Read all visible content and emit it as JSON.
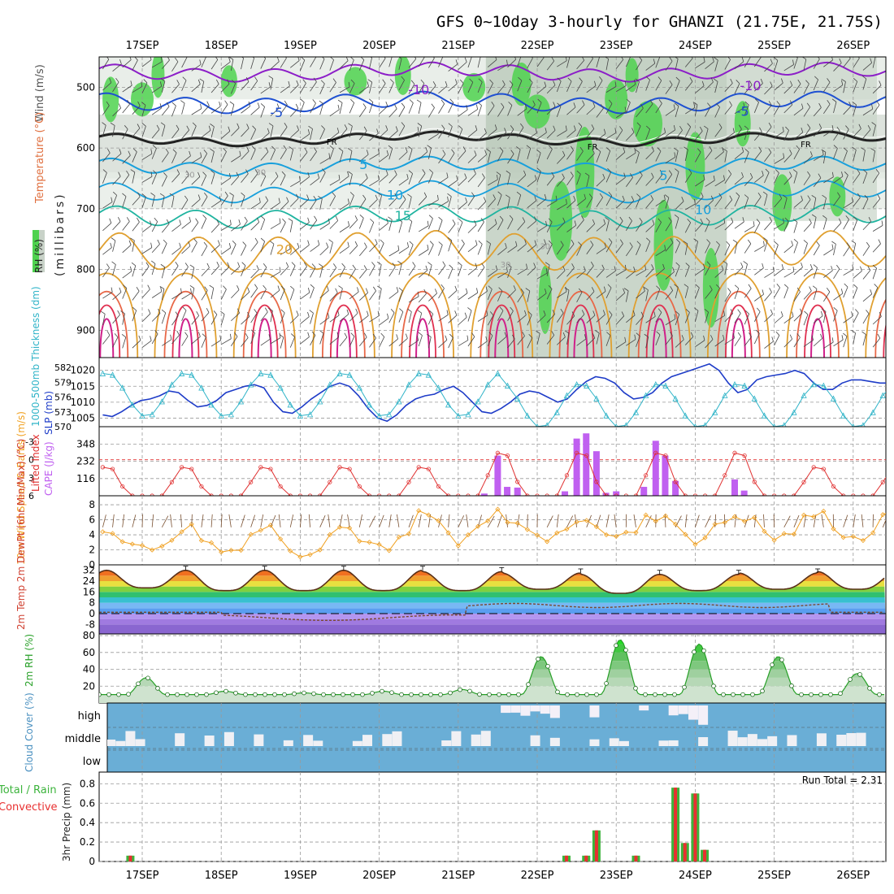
{
  "title": "GFS 0~10day 3-hourly for GHANZI (21.75E, 21.75S)",
  "colors": {
    "rh_green": "#4fd24f",
    "rh_grey": "#c8d2c8",
    "temp_purple": "#8c1ec8",
    "temp_blue": "#1e50d2",
    "freezing": "#222222",
    "temp_cyan": "#18a0dc",
    "temp_teal": "#20b4a0",
    "temp_orange": "#e0a030",
    "temp_red": "#e03050",
    "slp_blue": "#1e3cc8",
    "thickness_cyan": "#30b4c8",
    "cape_violet": "#c060f0",
    "lifted_red": "#e03030",
    "wind_orange": "#f0a020",
    "rh2m_green": "#28a028",
    "cloud_blue": "#6aaed6",
    "precip_green": "#3cb43c",
    "precip_red": "#e83030"
  },
  "icons": [
    "wind-barb-icon",
    "temperature-ramp-icon"
  ],
  "chart_data": [
    {
      "type": "heatmap",
      "name": "Upper-air cross section",
      "x_dates": [
        "17SEP",
        "18SEP",
        "19SEP",
        "20SEP",
        "21SEP",
        "22SEP",
        "23SEP",
        "24SEP",
        "25SEP",
        "26SEP"
      ],
      "ylabel": "(millibars)",
      "legend_labels": [
        "Wind (m/s)",
        "Temperature (°C)",
        "RH (%)"
      ],
      "y_ticks": [
        500,
        600,
        700,
        800,
        900
      ],
      "ylim": [
        945,
        450
      ],
      "contour_labels": [
        {
          "text": "-10",
          "day": 3.5,
          "p": 505
        },
        {
          "text": "-10",
          "day": 7.7,
          "p": 498
        },
        {
          "text": "-5",
          "day": 1.7,
          "p": 542
        },
        {
          "text": "-5",
          "day": 7.6,
          "p": 540
        },
        {
          "text": "FR",
          "day": 2.4,
          "p": 588
        },
        {
          "text": "FR",
          "day": 5.7,
          "p": 596
        },
        {
          "text": "FR",
          "day": 8.4,
          "p": 592
        },
        {
          "text": "5",
          "day": 2.8,
          "p": 628
        },
        {
          "text": "5",
          "day": 6.6,
          "p": 646
        },
        {
          "text": "10",
          "day": 3.2,
          "p": 678
        },
        {
          "text": "10",
          "day": 7.1,
          "p": 702
        },
        {
          "text": "15",
          "day": 3.3,
          "p": 712
        },
        {
          "text": "20",
          "day": 1.8,
          "p": 768
        },
        {
          "text": "30",
          "day": 0.6,
          "p": 642
        },
        {
          "text": "30",
          "day": 1.5,
          "p": 638
        },
        {
          "text": "30",
          "day": 4.6,
          "p": 790
        },
        {
          "text": "30",
          "day": 5.1,
          "p": 760
        }
      ]
    },
    {
      "type": "line",
      "name": "Thickness / SLP",
      "left_label": "1000-500mb Thickness (dm)",
      "right_label": "SLP (mb)",
      "left_ticks": [
        570,
        573,
        576,
        579,
        582
      ],
      "right_ticks": [
        1005,
        1010,
        1015,
        1020
      ],
      "right_ylim": [
        1002.3,
        1024.0
      ],
      "left_ylim": [
        570,
        584
      ],
      "slp": [
        1006,
        1005.5,
        1007,
        1009,
        1010.5,
        1011,
        1012,
        1013.5,
        1013,
        1010.5,
        1008.5,
        1009,
        1010.5,
        1013,
        1014,
        1015,
        1015.5,
        1014.5,
        1010,
        1007,
        1006.5,
        1008.5,
        1011,
        1013,
        1015,
        1016,
        1015,
        1012,
        1008,
        1005,
        1004,
        1006,
        1009,
        1011,
        1012,
        1012.5,
        1014,
        1015,
        1013,
        1010,
        1007,
        1006.5,
        1008,
        1010,
        1012.5,
        1013.5,
        1013,
        1011.5,
        1010,
        1011,
        1014,
        1016.5,
        1018,
        1017.5,
        1016,
        1013,
        1011,
        1011.5,
        1013,
        1016,
        1018,
        1019,
        1020,
        1021,
        1022,
        1020,
        1016,
        1013,
        1014,
        1017,
        1018,
        1018.5,
        1019,
        1020,
        1019,
        1016,
        1014,
        1014,
        1016,
        1017,
        1017,
        1016.5,
        1016,
        1016,
        1014
      ]
    },
    {
      "type": "bar",
      "name": "CAPE / Lifted Index",
      "left_label": "Lifted Index",
      "right_label": "CAPE (J/kg)",
      "li_ticks": [
        -3,
        0,
        3,
        6
      ],
      "cape_ticks": [
        116,
        232,
        348
      ],
      "cape_ylim": [
        0,
        465
      ],
      "li_ylim": [
        6,
        -5.5
      ],
      "cape_bars": [
        {
          "day": 4.33,
          "value": 15
        },
        {
          "day": 4.5,
          "value": 270
        },
        {
          "day": 4.62,
          "value": 60
        },
        {
          "day": 4.75,
          "value": 55
        },
        {
          "day": 5.35,
          "value": 30
        },
        {
          "day": 5.5,
          "value": 385
        },
        {
          "day": 5.62,
          "value": 420
        },
        {
          "day": 5.75,
          "value": 300
        },
        {
          "day": 5.87,
          "value": 20
        },
        {
          "day": 6.0,
          "value": 30
        },
        {
          "day": 6.35,
          "value": 60
        },
        {
          "day": 6.5,
          "value": 370
        },
        {
          "day": 6.62,
          "value": 270
        },
        {
          "day": 6.75,
          "value": 100
        },
        {
          "day": 7.5,
          "value": 110
        },
        {
          "day": 7.62,
          "value": 35
        }
      ]
    },
    {
      "type": "line",
      "name": "10m Wind",
      "ylabel": "10m Wind Speed & Barbs (m/s)",
      "y_ticks": [
        0,
        2,
        4,
        6,
        8
      ],
      "ylim": [
        0,
        9.2
      ]
    },
    {
      "type": "area",
      "name": "2m Temp / DewPt",
      "ylabel": "2m Temp 2m DewPt (6hr Min/Max) (°C)",
      "y_ticks": [
        -8,
        0,
        8,
        16,
        24,
        32
      ],
      "ylim": [
        -15,
        36
      ],
      "temp_max_by_day": [
        32,
        32,
        32,
        32,
        31,
        30,
        29,
        29,
        30,
        31
      ],
      "temp_min_by_day": [
        19,
        17,
        17,
        17,
        17,
        18,
        15,
        17,
        18,
        18
      ]
    },
    {
      "type": "area",
      "name": "2m RH",
      "ylabel": "2m RH (%)",
      "y_ticks": [
        20,
        40,
        60,
        80
      ],
      "ylim": [
        0,
        82
      ]
    },
    {
      "type": "bar",
      "name": "Cloud Cover",
      "ylabel": "Cloud Cover (%)",
      "levels": [
        "high",
        "middle",
        "low"
      ]
    },
    {
      "type": "bar",
      "name": "3hr Precip",
      "ylabel": "3hr Precip (mm)",
      "legend_labels": [
        "Total / Rain",
        "Convective"
      ],
      "run_total_label": "Run Total = 2.31",
      "y_ticks": [
        0,
        0.2,
        0.4,
        0.6,
        0.8
      ],
      "ylim": [
        0,
        0.92
      ],
      "bars": [
        {
          "day": -0.15,
          "total": 0.06,
          "convective": 0.06
        },
        {
          "day": 5.37,
          "total": 0.06,
          "convective": 0.06
        },
        {
          "day": 5.62,
          "total": 0.06,
          "convective": 0.06
        },
        {
          "day": 5.75,
          "total": 0.32,
          "convective": 0.32
        },
        {
          "day": 6.25,
          "total": 0.06,
          "convective": 0.06
        },
        {
          "day": 6.75,
          "total": 0.76,
          "convective": 0.76
        },
        {
          "day": 6.87,
          "total": 0.19,
          "convective": 0.19
        },
        {
          "day": 7.0,
          "total": 0.7,
          "convective": 0.7
        },
        {
          "day": 7.12,
          "total": 0.12,
          "convective": 0.12
        }
      ]
    }
  ]
}
